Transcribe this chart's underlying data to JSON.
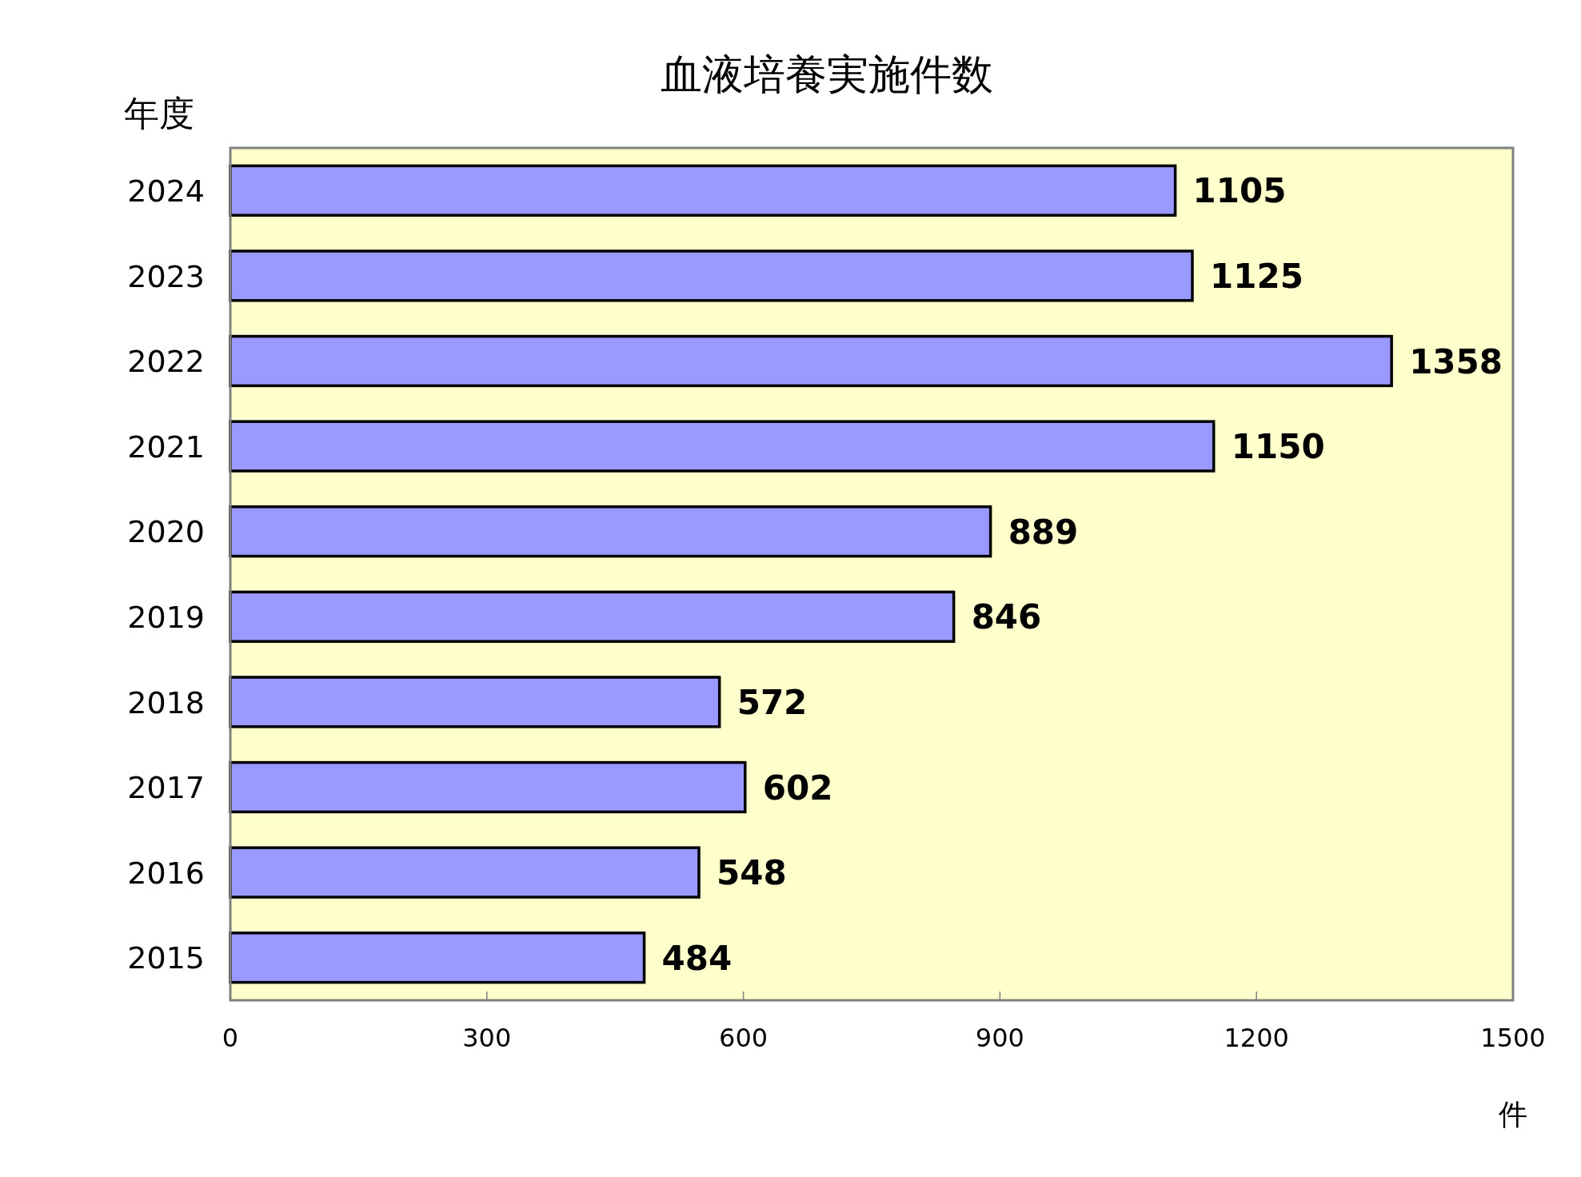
{
  "chart_data": {
    "type": "bar",
    "orientation": "horizontal",
    "title": "血液培養実施件数",
    "xlabel": "件",
    "ylabel": "年度",
    "categories": [
      "2024",
      "2023",
      "2022",
      "2021",
      "2020",
      "2019",
      "2018",
      "2017",
      "2016",
      "2015"
    ],
    "values": [
      1105,
      1125,
      1358,
      1150,
      889,
      846,
      572,
      602,
      548,
      484
    ],
    "color": "#9999ff",
    "xlim": [
      0,
      1500
    ],
    "xticks": [
      0,
      300,
      600,
      900,
      1200,
      1500
    ],
    "grid": false,
    "data_labels": true
  }
}
